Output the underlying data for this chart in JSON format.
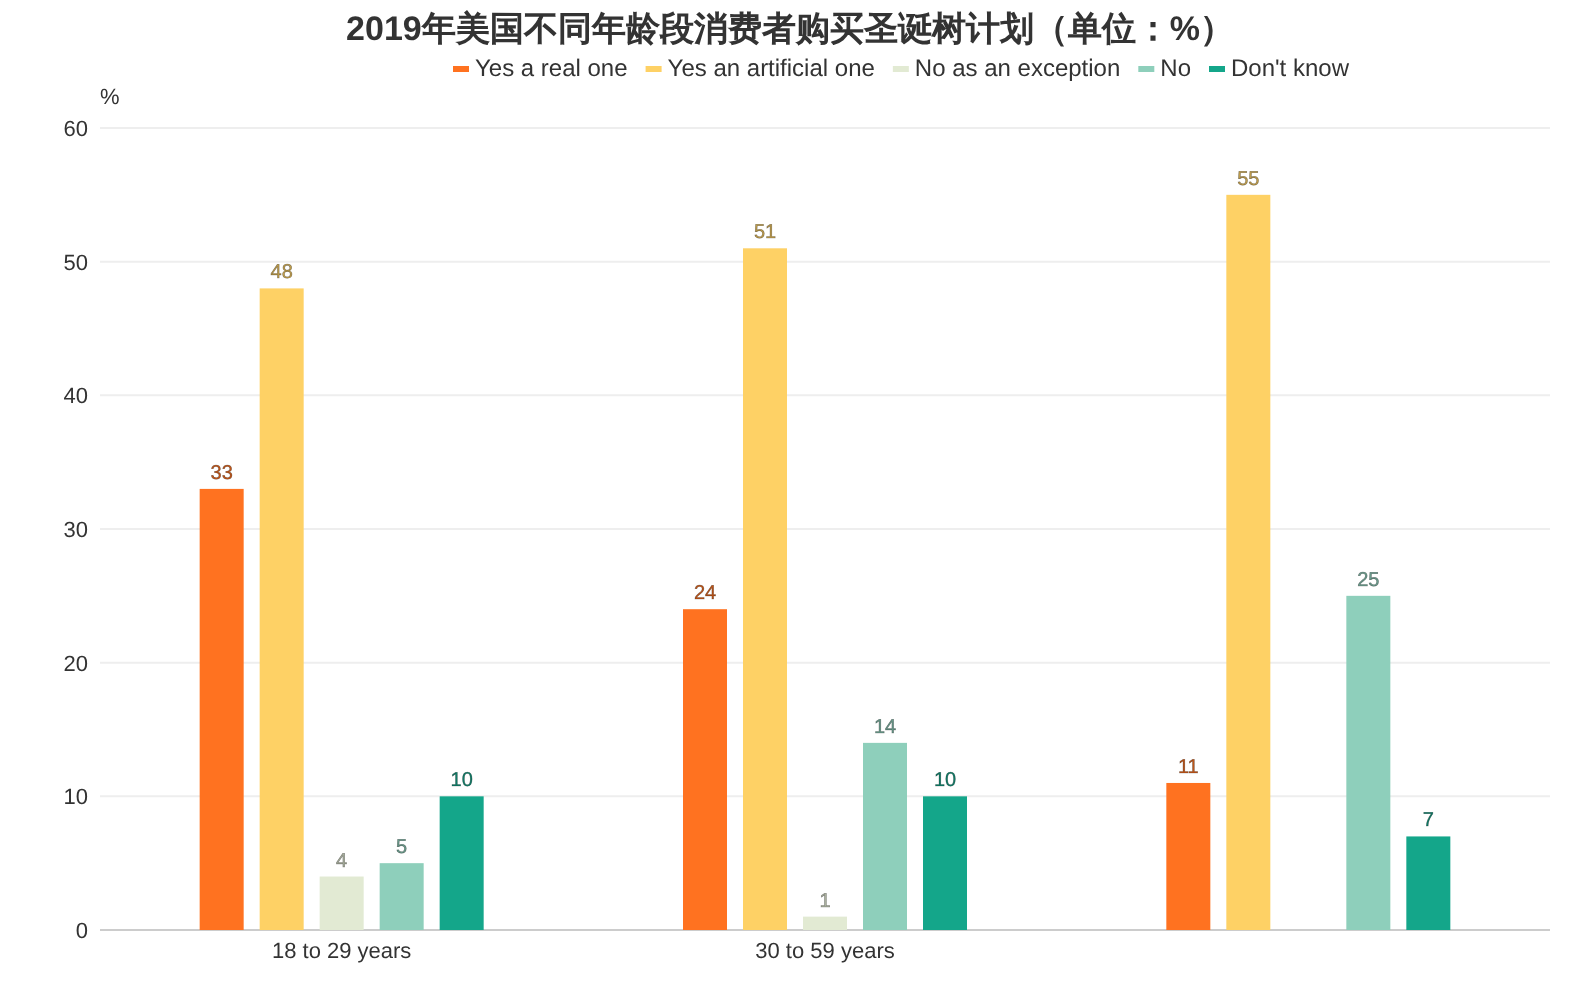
{
  "chart_data": {
    "type": "bar",
    "title": "2019年美国不同年龄段消费者购买圣诞树计划（单位：%）",
    "ylabel": "%",
    "categories": [
      "18 to 29 years",
      "30 to 59 years",
      null
    ],
    "series": [
      {
        "name": "Yes a real one",
        "color": "#ff7220",
        "values": [
          33,
          24,
          11
        ]
      },
      {
        "name": "Yes an artificial one",
        "color": "#fed165",
        "values": [
          48,
          51,
          55
        ]
      },
      {
        "name": "No as an exception",
        "color": "#e2ead3",
        "values": [
          4,
          1,
          null
        ]
      },
      {
        "name": "No",
        "color": "#8ecfbb",
        "values": [
          5,
          14,
          25
        ]
      },
      {
        "name": "Don't know",
        "color": "#14a68a",
        "values": [
          10,
          10,
          7
        ]
      }
    ],
    "ylim": [
      0,
      60
    ],
    "yticks": [
      0,
      10,
      20,
      30,
      40,
      50,
      60
    ],
    "grid": "y",
    "legend": "top",
    "data_labels": true
  }
}
